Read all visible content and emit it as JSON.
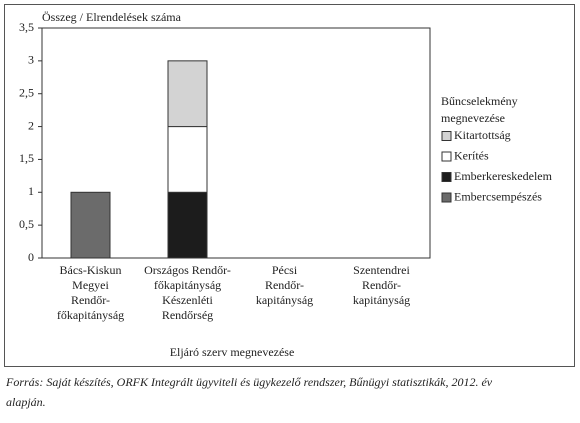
{
  "chart_data": {
    "type": "stacked-bar",
    "y_label": "Összeg / Elrendelések száma",
    "x_label": "Eljáró szerv megnevezése",
    "categories": [
      [
        "Bács-Kiskun",
        "Megyei",
        "Rendőr-",
        "főkapitányság"
      ],
      [
        "Országos Rendőr-",
        "főkapitányság",
        "Készenléti",
        "Rendőrség"
      ],
      [
        "Pécsi",
        "Rendőr-",
        "kapitányság"
      ],
      [
        "Szentendrei",
        "Rendőr-",
        "kapitányság"
      ]
    ],
    "series": [
      {
        "name": "Embercsempészés",
        "color": "#6b6b6b",
        "values": [
          1,
          0,
          0,
          0
        ]
      },
      {
        "name": "Emberkereskedelem",
        "color": "#1c1c1c",
        "values": [
          0,
          1,
          0,
          0
        ]
      },
      {
        "name": "Kerítés",
        "color": "#ffffff",
        "values": [
          0,
          1,
          0,
          0
        ]
      },
      {
        "name": "Kitartottság",
        "color": "#d3d3d3",
        "values": [
          0,
          1,
          0,
          0
        ]
      }
    ],
    "legend_title": [
      "Bűncselekmény",
      "megnevezése"
    ],
    "legend_position": "right",
    "ylim": [
      0,
      3.5
    ],
    "yticks": [
      0,
      {
        "value": 0.5,
        "label": "0,5"
      },
      1,
      {
        "value": 1.5,
        "label": "1,5"
      },
      2,
      {
        "value": 2.5,
        "label": "2,5"
      },
      3,
      {
        "value": 3.5,
        "label": "3,5"
      }
    ]
  },
  "source": [
    "Forrás: Saját készítés, ORFK Integrált ügyviteli és ügykezelő rendszer, Bűnügyi statisztikák, 2012. év",
    "alapján."
  ]
}
